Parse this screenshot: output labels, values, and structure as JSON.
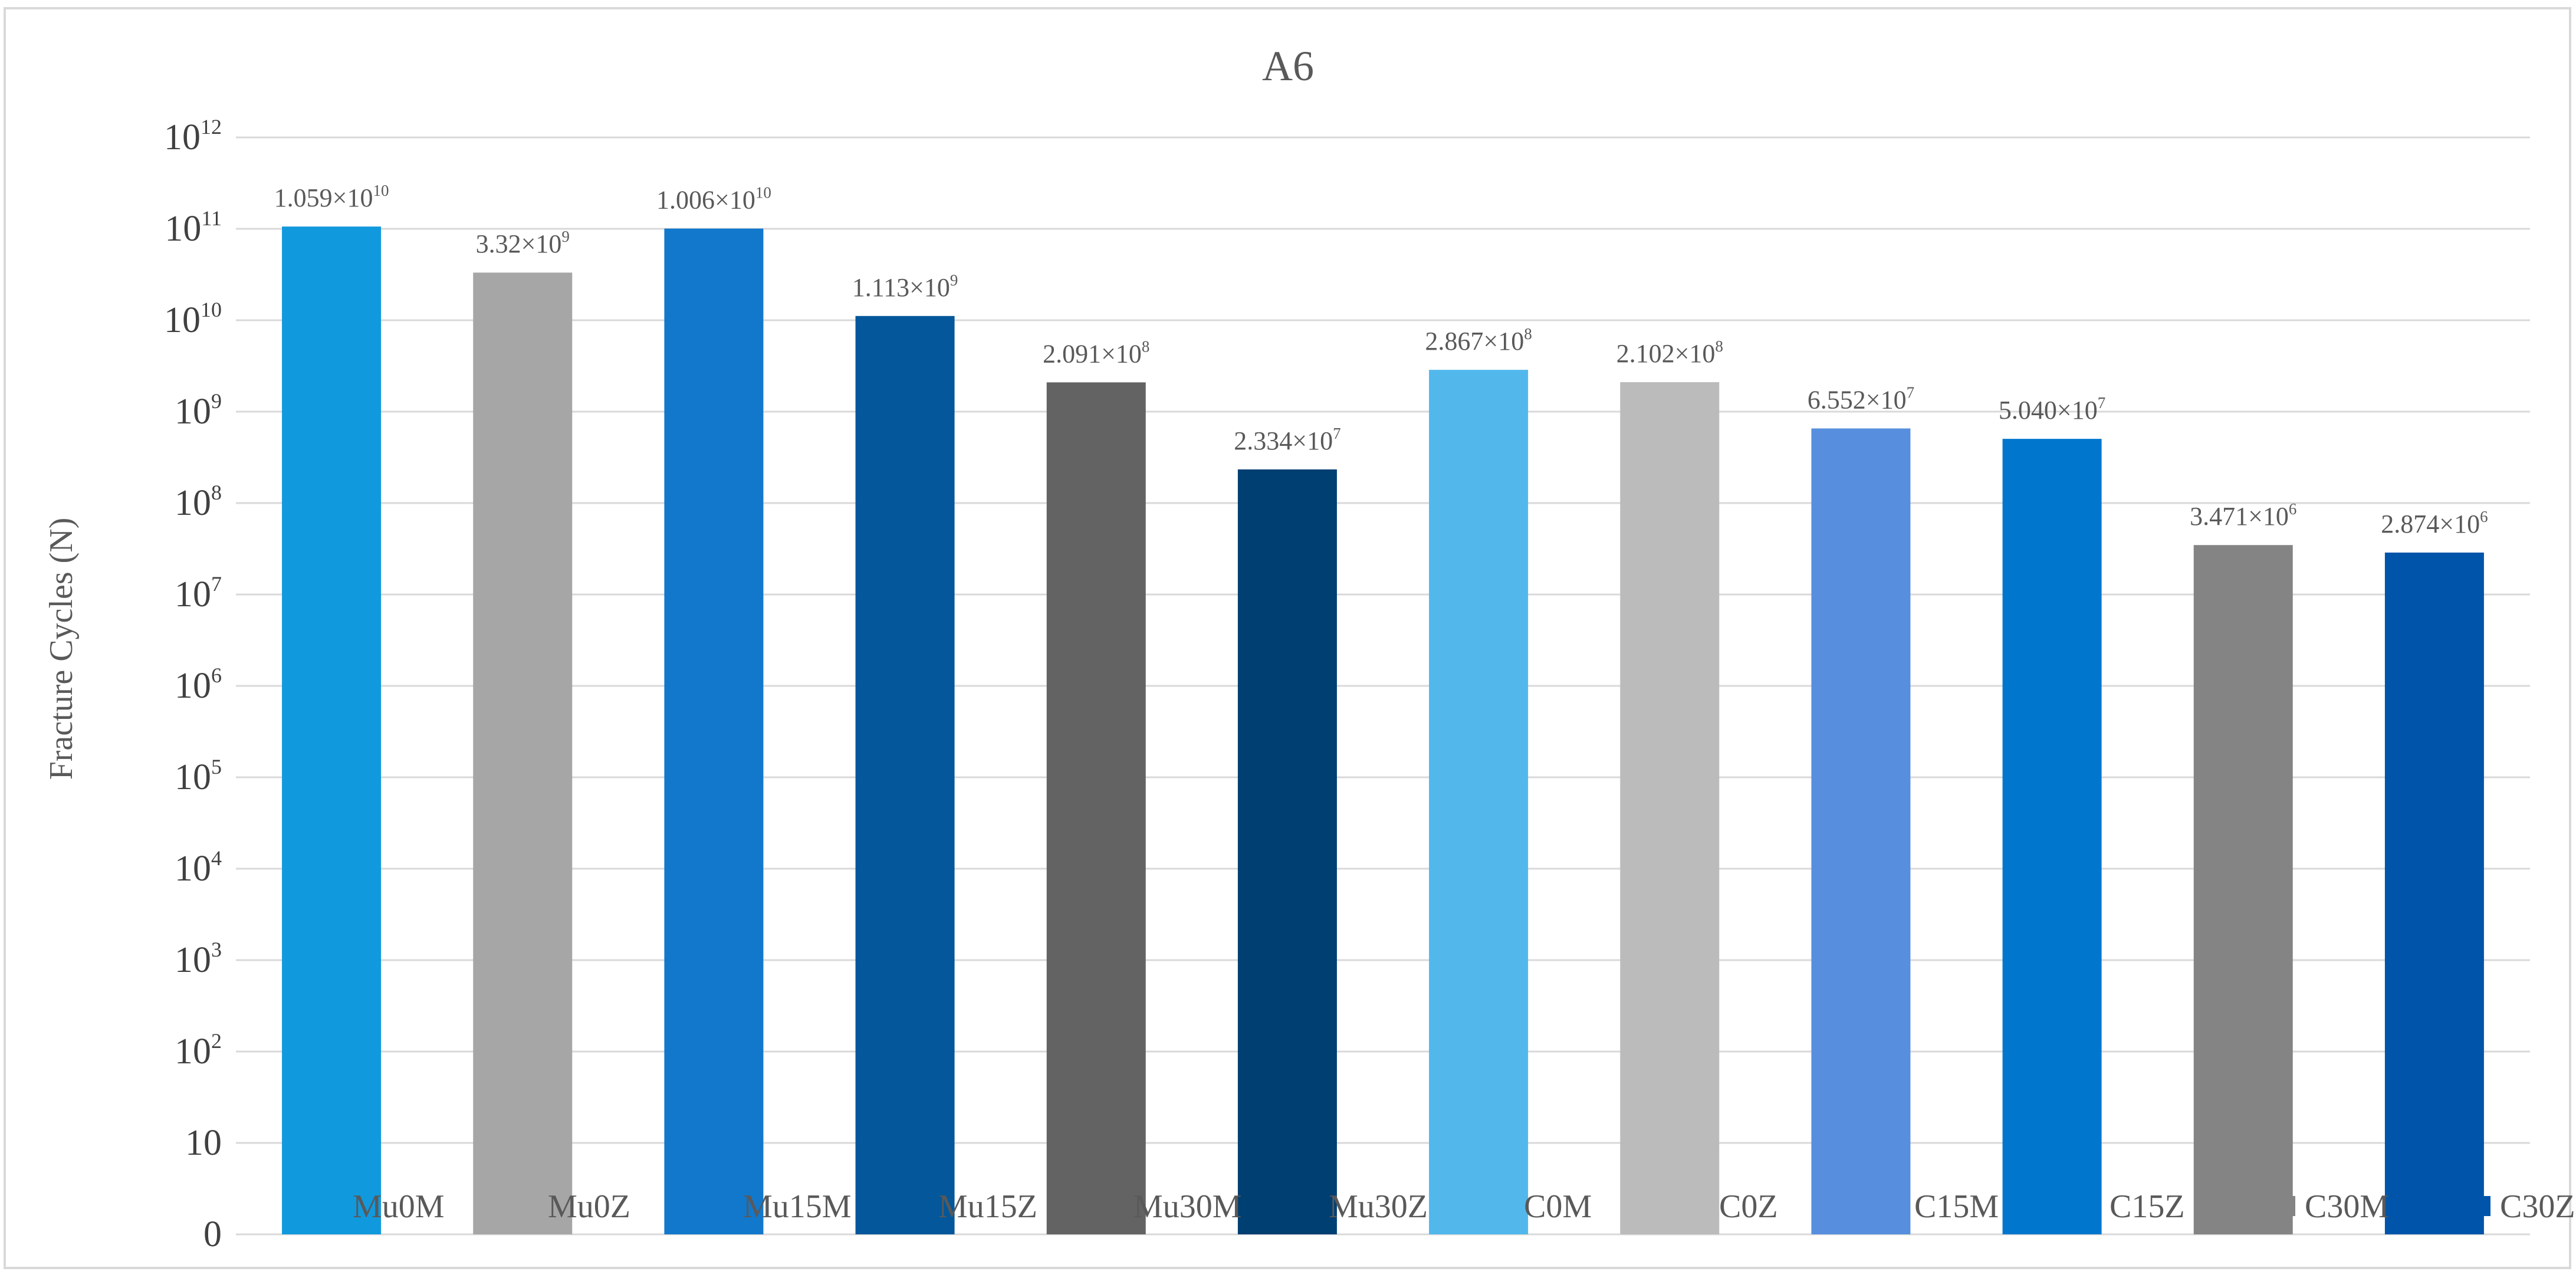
{
  "chart_data": {
    "type": "bar",
    "title": "A6",
    "xlabel": "",
    "ylabel": "Fracture Cycles (N)",
    "yscale": "log",
    "grid": true,
    "legend_position": "bottom",
    "y_ticks": [
      {
        "base": "0",
        "exp": ""
      },
      {
        "base": "10",
        "exp": ""
      },
      {
        "base": "10",
        "exp": "2"
      },
      {
        "base": "10",
        "exp": "3"
      },
      {
        "base": "10",
        "exp": "4"
      },
      {
        "base": "10",
        "exp": "5"
      },
      {
        "base": "10",
        "exp": "6"
      },
      {
        "base": "10",
        "exp": "7"
      },
      {
        "base": "10",
        "exp": "8"
      },
      {
        "base": "10",
        "exp": "9"
      },
      {
        "base": "10",
        "exp": "10"
      },
      {
        "base": "10",
        "exp": "11"
      },
      {
        "base": "10",
        "exp": "12"
      }
    ],
    "categories": [
      "Mu0M",
      "Mu0Z",
      "Mu15M",
      "Mu15Z",
      "Mu30M",
      "Mu30Z",
      "C0M",
      "C0Z",
      "C15M",
      "C15Z",
      "C30M",
      "C30Z"
    ],
    "values": [
      10590000000,
      3320000000,
      10060000000,
      1113000000,
      209100000,
      23340000,
      286700000,
      210200000,
      65520000,
      50400000,
      3471000,
      2874000
    ],
    "labels": [
      {
        "mantissa": "1.059×10",
        "exp": "10"
      },
      {
        "mantissa": "3.32×10",
        "exp": "9"
      },
      {
        "mantissa": "1.006×10",
        "exp": "10"
      },
      {
        "mantissa": "1.113×10",
        "exp": "9"
      },
      {
        "mantissa": "2.091×10",
        "exp": "8"
      },
      {
        "mantissa": "2.334×10",
        "exp": "7"
      },
      {
        "mantissa": "2.867×10",
        "exp": "8"
      },
      {
        "mantissa": "2.102×10",
        "exp": "8"
      },
      {
        "mantissa": "6.552×10",
        "exp": "7"
      },
      {
        "mantissa": "5.040×10",
        "exp": "7"
      },
      {
        "mantissa": "3.471×10",
        "exp": "6"
      },
      {
        "mantissa": "2.874×10",
        "exp": "6"
      }
    ],
    "colors": [
      "#1199DD",
      "#A6A6A6",
      "#1278CC",
      "#03579A",
      "#636363",
      "#003F72",
      "#52B8EC",
      "#BBBBBB",
      "#578FDE",
      "#0077CC",
      "#848484",
      "#0055AA"
    ]
  }
}
